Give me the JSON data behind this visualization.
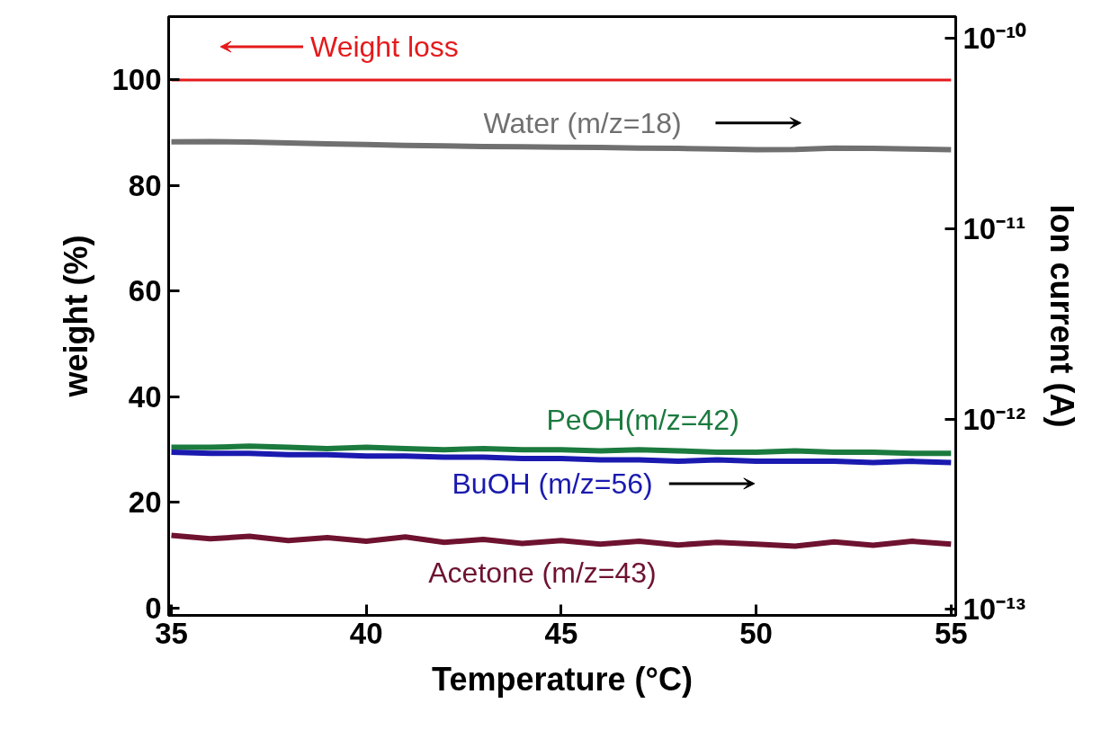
{
  "chart_data": {
    "type": "line",
    "xlabel": "Temperature (°C)",
    "ylabel": "weight (%)",
    "y2label": "Ion current (A)",
    "xlim": [
      34.93,
      55.12
    ],
    "xticks": [
      35,
      40,
      45,
      50,
      55
    ],
    "ylim": [
      -1.4,
      112
    ],
    "yticks": [
      0,
      20,
      40,
      60,
      80,
      100
    ],
    "y2lim": [
      9.3e-14,
      1.3e-10
    ],
    "y2ticks": [
      {
        "value": 1e-13,
        "label": "10⁻¹³"
      },
      {
        "value": 1e-12,
        "label": "10⁻¹²"
      },
      {
        "value": 1e-11,
        "label": "10⁻¹¹"
      },
      {
        "value": 1e-10,
        "label": "10⁻¹⁰"
      }
    ],
    "log": "y2",
    "grid": false,
    "marker": "none",
    "line_style": "solid",
    "x": [
      35,
      36,
      37,
      38,
      39,
      40,
      41,
      42,
      43,
      44,
      45,
      46,
      47,
      48,
      49,
      50,
      51,
      52,
      53,
      54,
      55
    ],
    "series": [
      {
        "name": "Weight loss",
        "color": "#e41a1c",
        "axis": "y",
        "values": [
          100,
          100,
          100,
          100,
          100,
          100,
          100,
          100,
          100,
          100,
          100,
          100,
          100,
          100,
          100,
          100,
          100,
          100,
          100,
          100,
          100
        ]
      },
      {
        "name": "Water (m/z=18)",
        "color": "#707070",
        "axis": "y2",
        "values": [
          2.86e-11,
          2.87e-11,
          2.85e-11,
          2.82e-11,
          2.79e-11,
          2.77e-11,
          2.74e-11,
          2.72e-11,
          2.7e-11,
          2.69e-11,
          2.68e-11,
          2.67e-11,
          2.65e-11,
          2.64e-11,
          2.62e-11,
          2.6e-11,
          2.61e-11,
          2.65e-11,
          2.64e-11,
          2.62e-11,
          2.6e-11
        ]
      },
      {
        "name": "PeOH(m/z=42)",
        "color": "#1b7a3e",
        "axis": "y2",
        "values": [
          7.1e-13,
          7.1e-13,
          7.2e-13,
          7.1e-13,
          7e-13,
          7.1e-13,
          7e-13,
          6.9e-13,
          7e-13,
          6.9e-13,
          6.9e-13,
          6.8e-13,
          6.9e-13,
          6.8e-13,
          6.7e-13,
          6.7e-13,
          6.8e-13,
          6.7e-13,
          6.7e-13,
          6.6e-13,
          6.6e-13
        ]
      },
      {
        "name": "BuOH (m/z=56)",
        "color": "#1a1ab0",
        "axis": "y2",
        "values": [
          6.7e-13,
          6.6e-13,
          6.6e-13,
          6.5e-13,
          6.5e-13,
          6.4e-13,
          6.4e-13,
          6.3e-13,
          6.3e-13,
          6.2e-13,
          6.2e-13,
          6.1e-13,
          6.1e-13,
          6e-13,
          6.1e-13,
          6e-13,
          6e-13,
          6e-13,
          5.9e-13,
          6e-13,
          5.9e-13
        ]
      },
      {
        "name": "Acetone (m/z=43)",
        "color": "#6e1230",
        "axis": "y2",
        "values": [
          2.45e-13,
          2.35e-13,
          2.42e-13,
          2.3e-13,
          2.38e-13,
          2.28e-13,
          2.4e-13,
          2.25e-13,
          2.33e-13,
          2.22e-13,
          2.3e-13,
          2.2e-13,
          2.28e-13,
          2.18e-13,
          2.25e-13,
          2.2e-13,
          2.15e-13,
          2.26e-13,
          2.17e-13,
          2.28e-13,
          2.2e-13
        ]
      }
    ]
  }
}
